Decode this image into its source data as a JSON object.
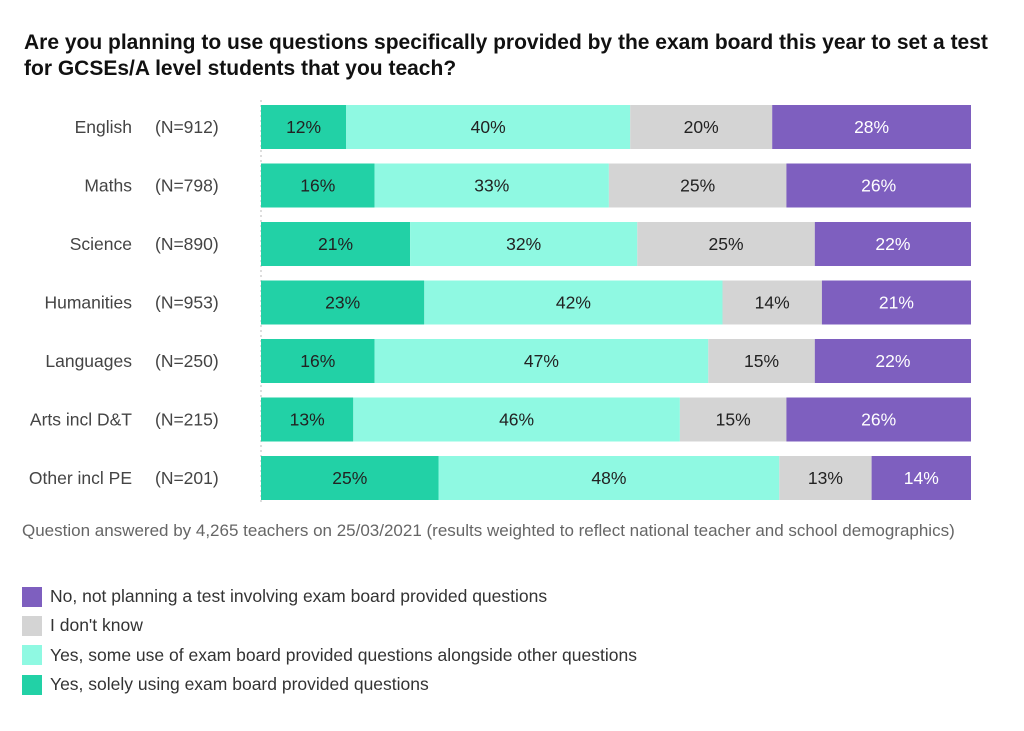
{
  "chart_data": {
    "type": "bar",
    "orientation": "horizontal-stacked-100",
    "title": "Are you planning to use questions specifically provided by the exam board this year to set a test for GCSEs/A level students that you teach?",
    "categories": [
      "English",
      "Maths",
      "Science",
      "Humanities",
      "Languages",
      "Arts incl D&T",
      "Other incl PE"
    ],
    "n_labels": [
      "(N=912)",
      "(N=798)",
      "(N=890)",
      "(N=953)",
      "(N=250)",
      "(N=215)",
      "(N=201)"
    ],
    "series": [
      {
        "name": "Yes, solely using exam board provided questions",
        "color": "#22d1a6",
        "text_color": "#222",
        "values": [
          12,
          16,
          21,
          23,
          16,
          13,
          25
        ]
      },
      {
        "name": "Yes, some use of exam board provided questions alongside other questions",
        "color": "#8ff9e2",
        "text_color": "#222",
        "values": [
          40,
          33,
          32,
          42,
          47,
          46,
          48
        ]
      },
      {
        "name": "I don't know",
        "color": "#d4d4d4",
        "text_color": "#222",
        "values": [
          20,
          25,
          25,
          14,
          15,
          15,
          13
        ]
      },
      {
        "name": "No, not planning a test involving exam board provided questions",
        "color": "#7e5fbf",
        "text_color": "#fff",
        "values": [
          28,
          26,
          22,
          21,
          22,
          26,
          14
        ]
      }
    ],
    "legend_order": [
      3,
      2,
      1,
      0
    ],
    "note": "Question answered by 4,265 teachers on 25/03/2021 (results weighted to reflect national teacher and school demographics)"
  }
}
